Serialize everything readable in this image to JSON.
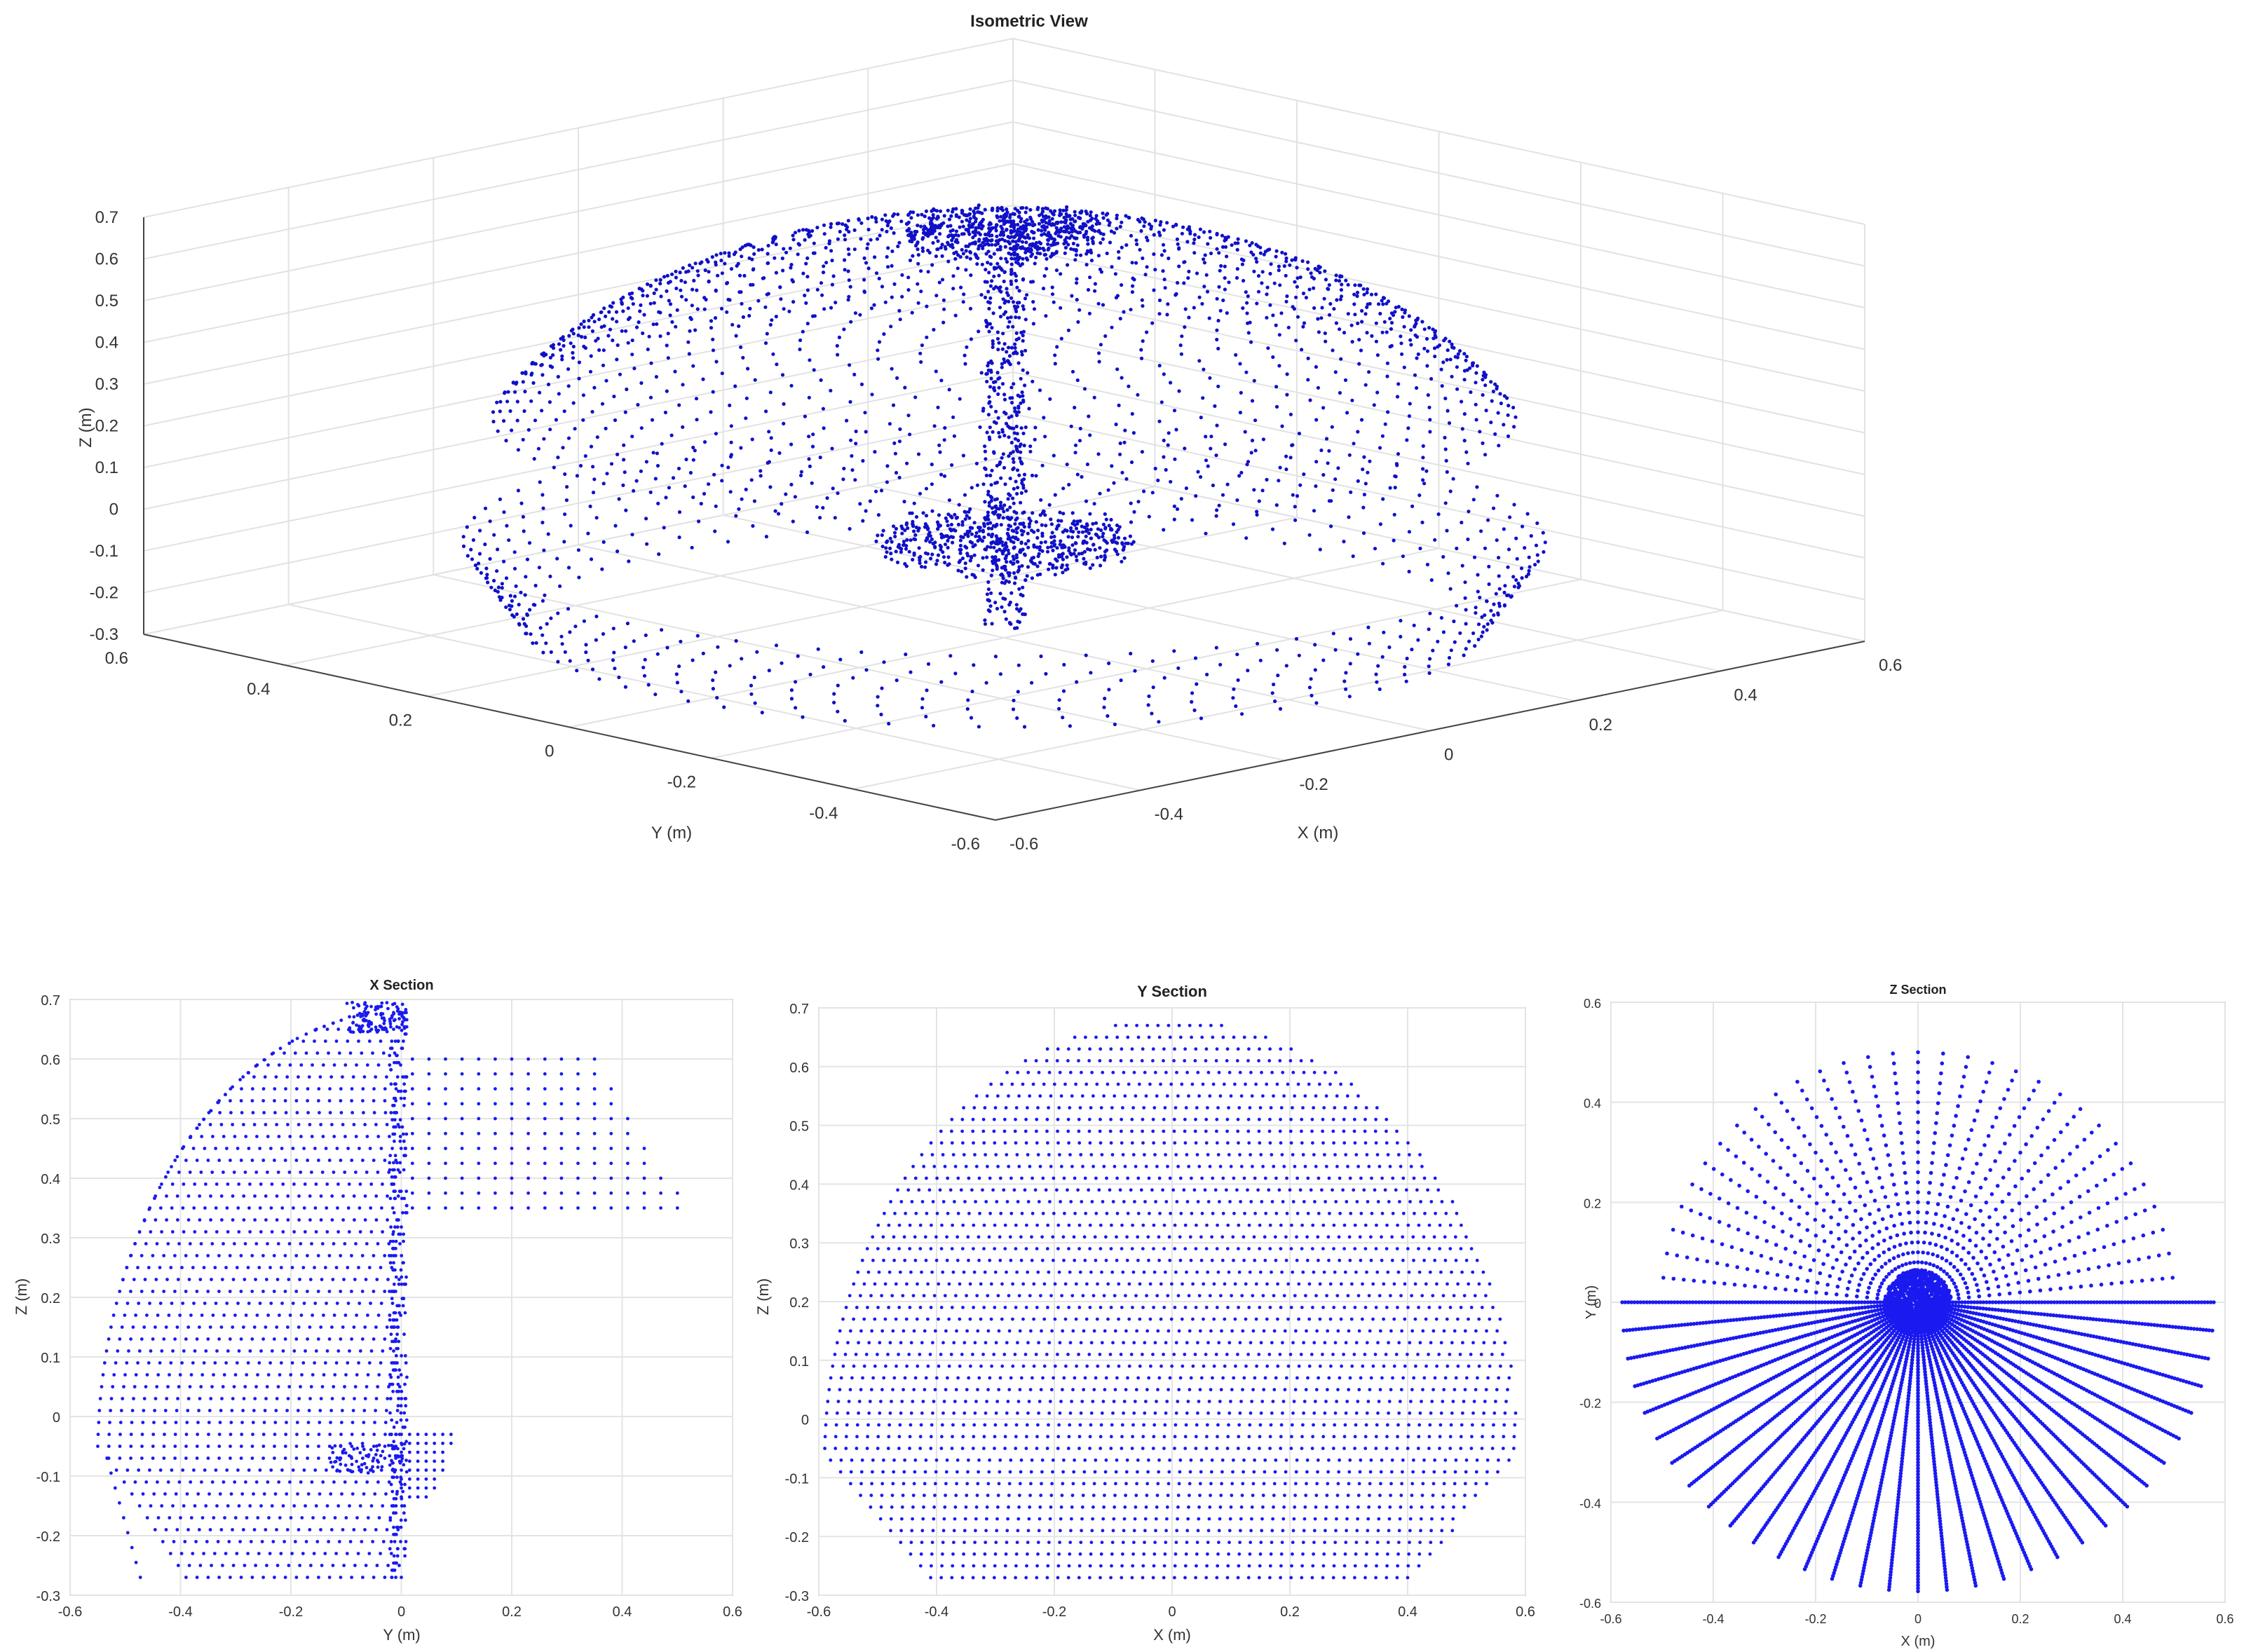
{
  "chart_data": [
    {
      "type": "scatter",
      "subtype": "3d",
      "title": "Isometric View",
      "xlabel": "X (m)",
      "ylabel": "Y (m)",
      "zlabel": "Z (m)",
      "xlim": [
        -0.6,
        0.6
      ],
      "ylim": [
        -0.6,
        0.6
      ],
      "zlim": [
        -0.3,
        0.7
      ],
      "xticks": [
        "-0.6",
        "-0.4",
        "-0.2",
        "0",
        "0.2",
        "0.4",
        "0.6"
      ],
      "yticks": [
        "-0.6",
        "-0.4",
        "-0.2",
        "0",
        "0.2",
        "0.4",
        "0.6"
      ],
      "zticks": [
        "-0.3",
        "-0.2",
        "-0.1",
        "0",
        "0.1",
        "0.2",
        "0.3",
        "0.4",
        "0.5",
        "0.6",
        "0.7"
      ],
      "grid": true,
      "point_color": "#1010c8",
      "shape": "dome-shaped point cloud of radius ~0.55 m spanning z from -0.27 to 0.68 m, with a thin vertical column at x=0, y=0"
    },
    {
      "type": "scatter",
      "title": "X Section",
      "xlabel": "Y (m)",
      "ylabel": "Z (m)",
      "xlim": [
        -0.6,
        0.6
      ],
      "ylim": [
        -0.3,
        0.7
      ],
      "xticks": [
        "-0.6",
        "-0.4",
        "-0.2",
        "0",
        "0.2",
        "0.4",
        "0.6"
      ],
      "yticks": [
        "-0.3",
        "-0.2",
        "-0.1",
        "0",
        "0.1",
        "0.2",
        "0.3",
        "0.4",
        "0.5",
        "0.6",
        "0.7"
      ],
      "grid": true,
      "point_color": "#1a1af0"
    },
    {
      "type": "scatter",
      "title": "Y Section",
      "xlabel": "X (m)",
      "ylabel": "Z (m)",
      "xlim": [
        -0.6,
        0.6
      ],
      "ylim": [
        -0.3,
        0.7
      ],
      "xticks": [
        "-0.6",
        "-0.4",
        "-0.2",
        "0",
        "0.2",
        "0.4",
        "0.6"
      ],
      "yticks": [
        "-0.3",
        "-0.2",
        "-0.1",
        "0",
        "0.1",
        "0.2",
        "0.3",
        "0.4",
        "0.5",
        "0.6",
        "0.7"
      ],
      "grid": true,
      "point_color": "#1a1af0"
    },
    {
      "type": "scatter",
      "title": "Z Section",
      "xlabel": "X (m)",
      "ylabel": "Y (m)",
      "xlim": [
        -0.6,
        0.6
      ],
      "ylim": [
        -0.6,
        0.6
      ],
      "xticks": [
        "-0.6",
        "-0.4",
        "-0.2",
        "0",
        "0.2",
        "0.4",
        "0.6"
      ],
      "yticks": [
        "-0.6",
        "-0.4",
        "-0.2",
        "0",
        "0.2",
        "0.4",
        "0.6"
      ],
      "grid": true,
      "point_color": "#1a1af0",
      "shape": "radial spokes from origin with a dense disk of radius ~0.06 m at the center"
    }
  ]
}
